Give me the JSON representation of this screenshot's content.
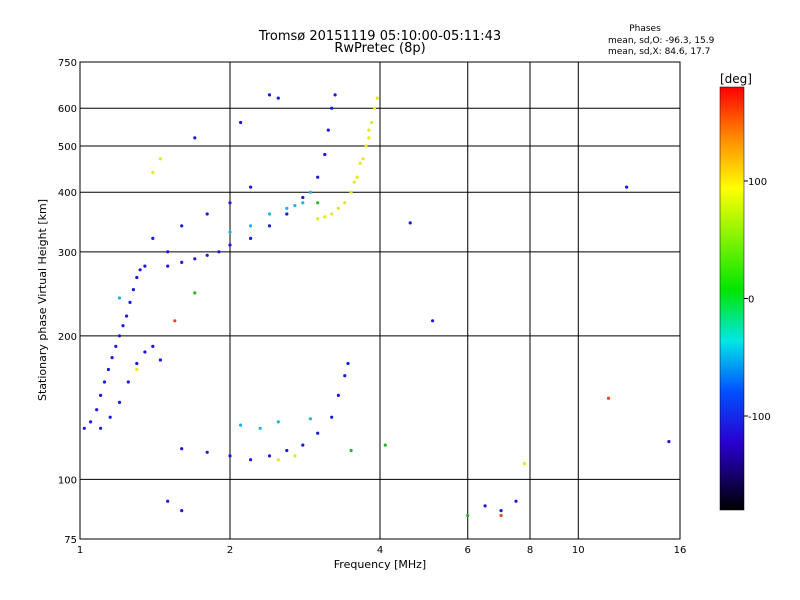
{
  "chart_data": {
    "type": "scatter",
    "title": "Tromsø 20151119 05:10:00-05:11:43",
    "subtitle": "RwPretec (8p)",
    "xlabel": "Frequency [MHz]",
    "ylabel": "Stationary phase Virtual Height [km]",
    "x_scale": "log",
    "y_scale": "log",
    "xlim": [
      1,
      16
    ],
    "ylim": [
      75,
      750
    ],
    "grid": true,
    "x_ticks": [
      1,
      2,
      4,
      6,
      8,
      10,
      16
    ],
    "x_tick_labels": [
      "1",
      "2",
      "4",
      "6",
      "8",
      "10",
      "16"
    ],
    "x_grid": [
      2,
      4,
      6,
      8,
      10
    ],
    "y_ticks": [
      75,
      100,
      200,
      300,
      400,
      500,
      600,
      750
    ],
    "y_tick_labels": [
      "75",
      "100",
      "200",
      "300",
      "400",
      "500",
      "600",
      "750"
    ],
    "y_grid": [
      100,
      200,
      300,
      400,
      500,
      600
    ],
    "phases_legend": {
      "title": "Phases",
      "line_o": "mean, sd,O: -96.3, 15.9",
      "line_x": "mean, sd,X:  84.6, 17.7"
    },
    "colorbar": {
      "label": "[deg]",
      "min": -180,
      "max": 180,
      "ticks": [
        100,
        0,
        -100
      ],
      "tick_labels": [
        "100",
        "0",
        "-100"
      ]
    },
    "series": [
      {
        "name": "O",
        "color": "#1a1adb",
        "points": [
          [
            1.02,
            128
          ],
          [
            1.05,
            132
          ],
          [
            1.08,
            140
          ],
          [
            1.1,
            150
          ],
          [
            1.12,
            160
          ],
          [
            1.14,
            170
          ],
          [
            1.16,
            180
          ],
          [
            1.18,
            190
          ],
          [
            1.2,
            200
          ],
          [
            1.22,
            210
          ],
          [
            1.24,
            220
          ],
          [
            1.26,
            235
          ],
          [
            1.28,
            250
          ],
          [
            1.3,
            265
          ],
          [
            1.32,
            275
          ],
          [
            1.35,
            280
          ],
          [
            1.1,
            128
          ],
          [
            1.15,
            135
          ],
          [
            1.2,
            145
          ],
          [
            1.25,
            160
          ],
          [
            1.3,
            175
          ],
          [
            1.35,
            185
          ],
          [
            1.4,
            190
          ],
          [
            1.45,
            178
          ],
          [
            1.5,
            280
          ],
          [
            1.6,
            285
          ],
          [
            1.7,
            290
          ],
          [
            1.8,
            295
          ],
          [
            1.9,
            300
          ],
          [
            2.0,
            310
          ],
          [
            2.2,
            320
          ],
          [
            2.4,
            340
          ],
          [
            2.6,
            360
          ],
          [
            2.8,
            390
          ],
          [
            3.0,
            430
          ],
          [
            3.1,
            480
          ],
          [
            3.15,
            540
          ],
          [
            3.2,
            600
          ],
          [
            3.25,
            640
          ],
          [
            1.6,
            340
          ],
          [
            1.8,
            360
          ],
          [
            2.0,
            380
          ],
          [
            2.2,
            410
          ],
          [
            1.4,
            320
          ],
          [
            1.5,
            300
          ],
          [
            2.4,
            640
          ],
          [
            2.5,
            630
          ],
          [
            2.1,
            560
          ],
          [
            1.7,
            520
          ],
          [
            1.6,
            116
          ],
          [
            1.8,
            114
          ],
          [
            2.0,
            112
          ],
          [
            2.2,
            110
          ],
          [
            2.4,
            112
          ],
          [
            2.6,
            115
          ],
          [
            2.8,
            118
          ],
          [
            3.0,
            125
          ],
          [
            3.2,
            135
          ],
          [
            3.3,
            150
          ],
          [
            3.4,
            165
          ],
          [
            3.45,
            175
          ],
          [
            1.6,
            86
          ],
          [
            1.5,
            90
          ],
          [
            6.5,
            88
          ],
          [
            7.0,
            86
          ],
          [
            7.5,
            90
          ],
          [
            15.2,
            120
          ],
          [
            12.5,
            410
          ],
          [
            5.1,
            215
          ],
          [
            4.6,
            345
          ]
        ]
      },
      {
        "name": "X",
        "color": "#e6e61a",
        "points": [
          [
            3.4,
            380
          ],
          [
            3.5,
            400
          ],
          [
            3.6,
            430
          ],
          [
            3.7,
            470
          ],
          [
            3.8,
            520
          ],
          [
            3.85,
            560
          ],
          [
            3.9,
            600
          ],
          [
            3.95,
            630
          ],
          [
            3.3,
            370
          ],
          [
            3.2,
            360
          ],
          [
            3.1,
            355
          ],
          [
            3.0,
            352
          ],
          [
            3.55,
            420
          ],
          [
            3.65,
            460
          ],
          [
            3.75,
            500
          ],
          [
            3.8,
            540
          ],
          [
            1.3,
            170
          ],
          [
            2.5,
            110
          ],
          [
            2.7,
            112
          ],
          [
            1.4,
            440
          ],
          [
            1.45,
            470
          ],
          [
            7.8,
            108
          ]
        ]
      },
      {
        "name": "",
        "color": "#19b4e6",
        "points": [
          [
            2.8,
            380
          ],
          [
            2.9,
            400
          ],
          [
            2.6,
            370
          ],
          [
            2.4,
            360
          ],
          [
            2.2,
            340
          ],
          [
            2.1,
            130
          ],
          [
            2.3,
            128
          ],
          [
            2.5,
            132
          ],
          [
            2.9,
            134
          ],
          [
            1.2,
            240
          ],
          [
            2.0,
            330
          ],
          [
            2.7,
            375
          ]
        ]
      },
      {
        "name": "",
        "color": "#2ab32a",
        "points": [
          [
            1.7,
            246
          ],
          [
            3.0,
            380
          ],
          [
            3.5,
            115
          ],
          [
            6.0,
            84
          ],
          [
            4.1,
            118
          ]
        ]
      },
      {
        "name": "",
        "color": "#e64a1a",
        "points": [
          [
            1.55,
            215
          ],
          [
            7.0,
            84
          ],
          [
            11.5,
            148
          ]
        ]
      }
    ]
  }
}
